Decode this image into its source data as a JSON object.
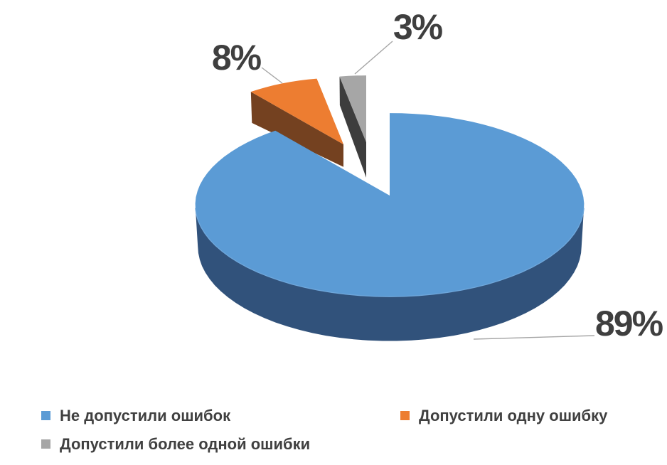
{
  "chart_data": {
    "type": "pie",
    "style": "3d-exploded",
    "title": "",
    "background": "#FFFFFF",
    "label_color": "#3F3F3F",
    "leader_line_color": "#A6A6A6",
    "legend_position": "bottom",
    "slices": [
      {
        "name": "Не допустили ошибок",
        "value": 89,
        "label": "89%",
        "color": "#5B9BD5",
        "side_color": "#31527B"
      },
      {
        "name": "Допустили одну ошибку",
        "value": 8,
        "label": "8%",
        "color": "#ED7D31",
        "side_color": "#744120"
      },
      {
        "name": "Допустили более одной ошибки",
        "value": 3,
        "label": "3%",
        "color": "#A6A6A6",
        "side_color": "#3D3D3D"
      }
    ]
  }
}
